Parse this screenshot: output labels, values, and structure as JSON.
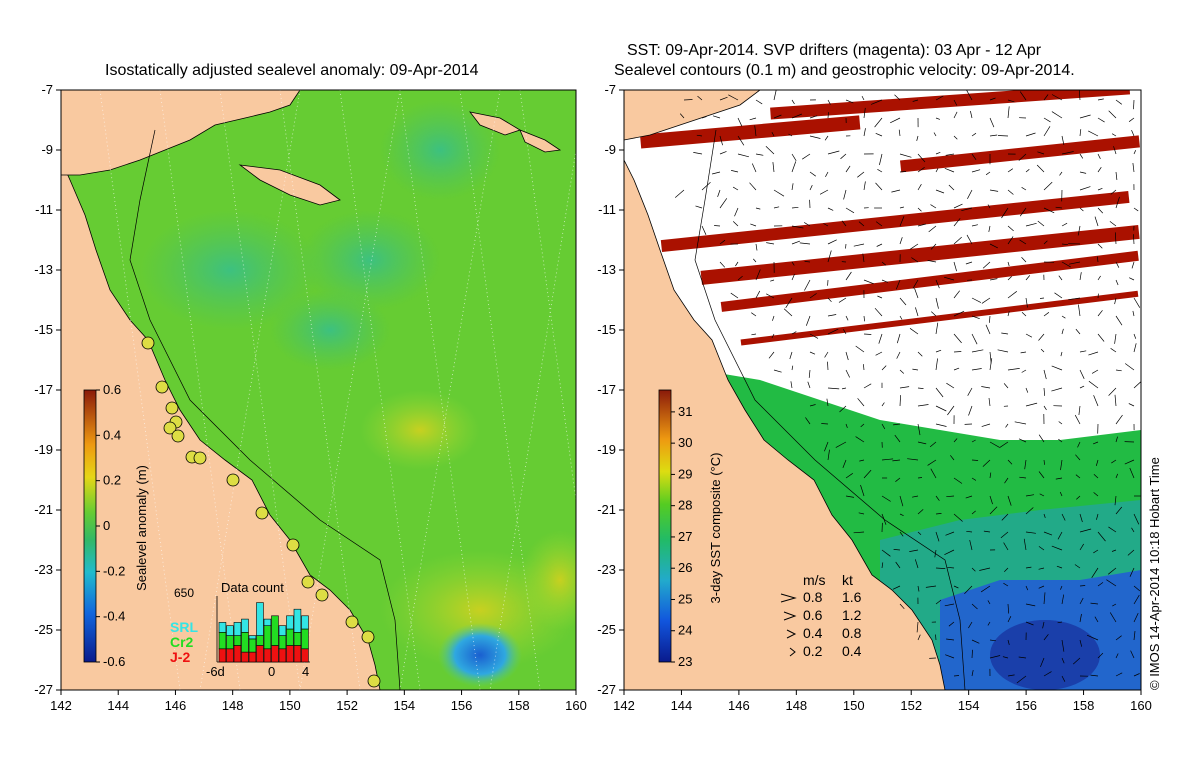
{
  "left_panel": {
    "title": "Isostatically adjusted sealevel anomaly: 09-Apr-2014",
    "colorbar": {
      "label": "Sealevel anomaly (m)",
      "ticks": [
        "0.6",
        "0.4",
        "0.2",
        "0",
        "-0.2",
        "-0.4",
        "-0.6"
      ],
      "range": [
        -0.6,
        0.6
      ]
    },
    "data_count": {
      "title": "Data count",
      "max_label": "650",
      "x_labels": [
        "-6d",
        "0",
        "4"
      ],
      "series": [
        {
          "name": "SRL",
          "color": "#33e5e5"
        },
        {
          "name": "Cr2",
          "color": "#22dd22"
        },
        {
          "name": "J-2",
          "color": "#ee1111"
        }
      ],
      "bars": [
        {
          "srl": 0.15,
          "cr2": 0.25,
          "j2": 0.2
        },
        {
          "srl": 0.15,
          "cr2": 0.2,
          "j2": 0.2
        },
        {
          "srl": 0.2,
          "cr2": 0.15,
          "j2": 0.25
        },
        {
          "srl": 0.2,
          "cr2": 0.3,
          "j2": 0.15
        },
        {
          "srl": 0.05,
          "cr2": 0.2,
          "j2": 0.15
        },
        {
          "srl": 0.5,
          "cr2": 0.15,
          "j2": 0.25
        },
        {
          "srl": 0.1,
          "cr2": 0.35,
          "j2": 0.2
        },
        {
          "srl": 0.0,
          "cr2": 0.45,
          "j2": 0.25
        },
        {
          "srl": 0.15,
          "cr2": 0.2,
          "j2": 0.2
        },
        {
          "srl": 0.2,
          "cr2": 0.25,
          "j2": 0.25
        },
        {
          "srl": 0.35,
          "cr2": 0.2,
          "j2": 0.25
        },
        {
          "srl": 0.2,
          "cr2": 0.3,
          "j2": 0.2
        }
      ]
    }
  },
  "right_panel": {
    "title_line1": "SST: 09-Apr-2014. SVP drifters (magenta): 03 Apr - 12 Apr",
    "title_line2": "Sealevel contours (0.1 m) and geostrophic velocity: 09-Apr-2014.",
    "colorbar": {
      "label": "3-day SST composite (°C)",
      "ticks": [
        "31",
        "30",
        "29",
        "28",
        "27",
        "26",
        "25",
        "24",
        "23"
      ],
      "range": [
        23,
        31.7
      ]
    },
    "speed_legend": {
      "header_ms": "m/s",
      "header_kt": "kt",
      "rows": [
        {
          "ms": "0.8",
          "kt": "1.6"
        },
        {
          "ms": "0.6",
          "kt": "1.2"
        },
        {
          "ms": "0.4",
          "kt": "0.8"
        },
        {
          "ms": "0.2",
          "kt": "0.4"
        }
      ]
    },
    "credit": "© IMOS 14-Apr-2014 10:18 Hobart Time"
  },
  "axes": {
    "lon_ticks": [
      "142",
      "144",
      "146",
      "148",
      "150",
      "152",
      "154",
      "156",
      "158",
      "160"
    ],
    "lat_ticks": [
      "-7",
      "-9",
      "-11",
      "-13",
      "-15",
      "-17",
      "-19",
      "-21",
      "-23",
      "-25",
      "-27"
    ],
    "lon_range": [
      142,
      160
    ],
    "lat_range": [
      -27,
      -7
    ]
  },
  "colors": {
    "land": "#f9c9a0",
    "sla_base": "#66cc33",
    "sst_flag": "#aa1100",
    "sst_warm": "#22cc33",
    "sst_cool": "#2244cc"
  }
}
